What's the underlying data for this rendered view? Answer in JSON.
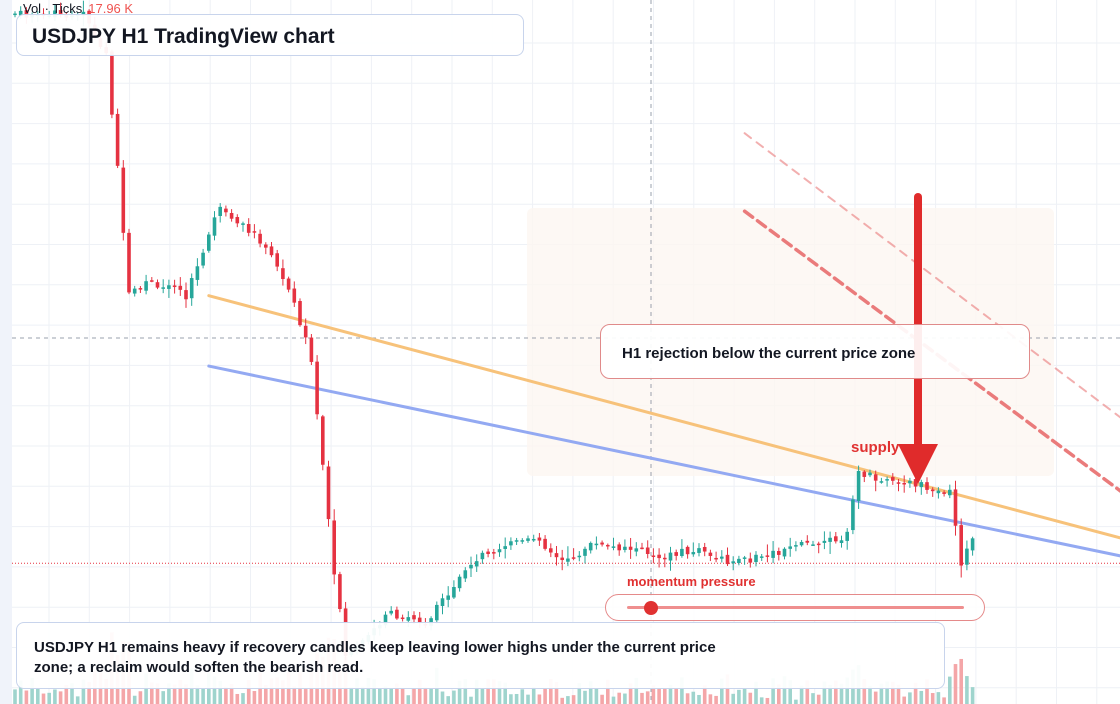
{
  "header": {
    "vol_label": "Vol · Ticks",
    "vol_value": "17.96 K",
    "title": "USDJPY H1 TradingView chart"
  },
  "annotations": {
    "callout": "H1 rejection below the current price zone",
    "supply_label": "supply",
    "momentum_label": "momentum pressure",
    "momentum_level": 0.07,
    "note": "USDJPY H1 remains heavy if recovery candles keep leaving lower highs under the current price zone; a reclaim would soften the bearish read."
  },
  "colors": {
    "up": "#26a69a",
    "down": "#e53241",
    "orange_trend": "#f7c27a",
    "blue_trend": "#93a9f2",
    "red_trend": "#ea7b7b",
    "arrow": "#e02b2b",
    "grid": "#eef1f6",
    "vol_up": "#9fd4cd",
    "vol_down": "#f4a6a8"
  },
  "chart_data": {
    "type": "candlestick",
    "grid": true,
    "y_range": [
      147.6,
      148.6
    ],
    "shown_price": 147.8,
    "seed": 7,
    "price_path": [
      [
        0,
        148.58
      ],
      [
        12,
        148.58
      ],
      [
        16,
        148.52
      ],
      [
        18,
        148.36
      ],
      [
        20,
        148.19
      ],
      [
        24,
        148.2
      ],
      [
        30,
        148.18
      ],
      [
        36,
        148.31
      ],
      [
        40,
        148.28
      ],
      [
        44,
        148.25
      ],
      [
        48,
        148.19
      ],
      [
        52,
        148.09
      ],
      [
        56,
        147.79
      ],
      [
        58,
        147.67
      ],
      [
        62,
        147.7
      ],
      [
        66,
        147.73
      ],
      [
        72,
        147.71
      ],
      [
        76,
        147.76
      ],
      [
        80,
        147.8
      ],
      [
        84,
        147.82
      ],
      [
        90,
        147.84
      ],
      [
        96,
        147.8
      ],
      [
        102,
        147.83
      ],
      [
        108,
        147.82
      ],
      [
        114,
        147.81
      ],
      [
        120,
        147.82
      ],
      [
        126,
        147.8
      ],
      [
        132,
        147.81
      ],
      [
        140,
        147.83
      ],
      [
        146,
        147.84
      ],
      [
        148,
        147.93
      ],
      [
        152,
        147.92
      ],
      [
        160,
        147.91
      ],
      [
        164,
        147.9
      ],
      [
        166,
        147.8
      ],
      [
        168,
        147.84
      ]
    ],
    "trendlines": [
      {
        "name": "orange",
        "from": [
          34,
          148.18
        ],
        "to": [
          206,
          147.81
        ]
      },
      {
        "name": "blue",
        "from": [
          34,
          148.08
        ],
        "to": [
          206,
          147.79
        ]
      },
      {
        "name": "red_dashed",
        "from": [
          128,
          148.3
        ],
        "to": [
          201,
          147.86
        ]
      },
      {
        "name": "red_dashed_light",
        "from": [
          128,
          148.3
        ],
        "to": [
          201,
          147.87
        ]
      }
    ]
  }
}
